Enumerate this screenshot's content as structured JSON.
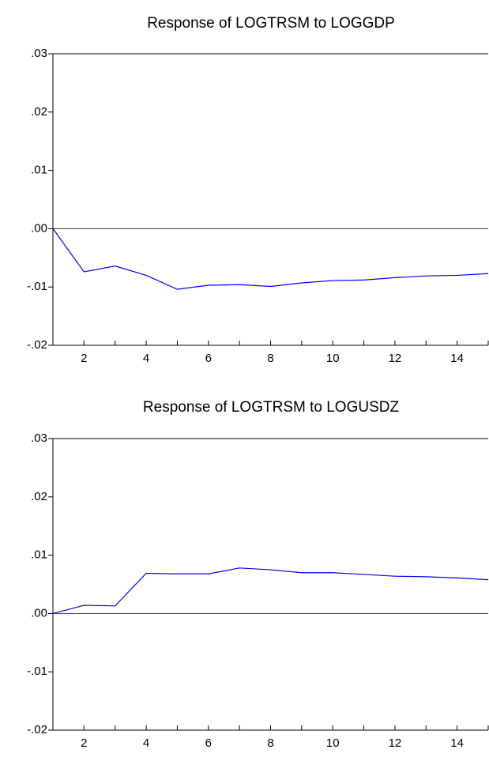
{
  "chart_data": [
    {
      "type": "line",
      "title": "Response of LOGTRSM to LOGGDP",
      "x": [
        1,
        2,
        3,
        4,
        5,
        6,
        7,
        8,
        9,
        10,
        11,
        12,
        13,
        14,
        15
      ],
      "values": [
        0.0,
        -0.0074,
        -0.0064,
        -0.008,
        -0.0104,
        -0.0097,
        -0.0096,
        -0.0099,
        -0.0093,
        -0.0089,
        -0.0088,
        -0.0084,
        -0.0081,
        -0.008,
        -0.0077
      ],
      "color": "#0000ff",
      "xlim": [
        1,
        15
      ],
      "xticks": [
        2,
        4,
        6,
        8,
        10,
        12,
        14
      ],
      "xminorticks": [
        1,
        3,
        5,
        7,
        9,
        11,
        13,
        15
      ],
      "ylim": [
        -0.02,
        0.03
      ],
      "yticks": [
        {
          "value": -0.02,
          "label": "-.02"
        },
        {
          "value": -0.01,
          "label": "-.01"
        },
        {
          "value": 0,
          "label": ".00"
        },
        {
          "value": 0.01,
          "label": ".01"
        },
        {
          "value": 0.02,
          "label": ".02"
        },
        {
          "value": 0.03,
          "label": ".03"
        }
      ],
      "zero_line": true
    },
    {
      "type": "line",
      "title": "Response of LOGTRSM to LOGUSDZ",
      "x": [
        1,
        2,
        3,
        4,
        5,
        6,
        7,
        8,
        9,
        10,
        11,
        12,
        13,
        14,
        15
      ],
      "values": [
        0.0,
        0.0014,
        0.0013,
        0.0069,
        0.0068,
        0.0068,
        0.0078,
        0.0075,
        0.007,
        0.007,
        0.0067,
        0.0064,
        0.0063,
        0.0061,
        0.0058
      ],
      "color": "#0000ff",
      "xlim": [
        1,
        15
      ],
      "xticks": [
        2,
        4,
        6,
        8,
        10,
        12,
        14
      ],
      "xminorticks": [
        1,
        3,
        5,
        7,
        9,
        11,
        13,
        15
      ],
      "ylim": [
        -0.02,
        0.03
      ],
      "yticks": [
        {
          "value": -0.02,
          "label": "-.02"
        },
        {
          "value": -0.01,
          "label": "-.01"
        },
        {
          "value": 0,
          "label": ".00"
        },
        {
          "value": 0.01,
          "label": ".01"
        },
        {
          "value": 0.02,
          "label": ".02"
        },
        {
          "value": 0.03,
          "label": ".03"
        }
      ],
      "zero_line": true
    }
  ]
}
